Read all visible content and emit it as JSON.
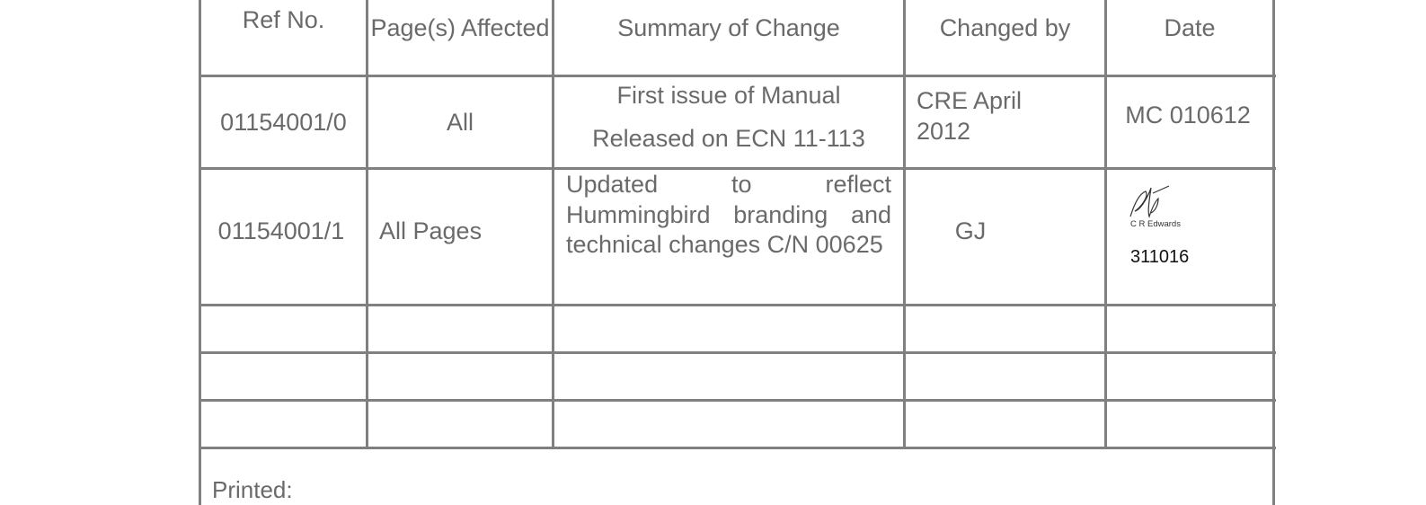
{
  "table": {
    "headers": [
      "Ref No.",
      "Page(s) Affected",
      "Summary of Change",
      "Changed by",
      "Date"
    ],
    "rows": [
      {
        "ref": "01154001/0",
        "pages": "All",
        "summary_line1": "First issue of Manual",
        "summary_line2": "Released on ECN 11-113",
        "changed_by": "CRE April 2012",
        "date": "MC 010612"
      },
      {
        "ref": "01154001/1",
        "pages": "All Pages",
        "summary": "Updated to reflect Hummingbird branding and technical changes C/N 00625",
        "changed_by": "GJ",
        "signature_name": "C R Edwards",
        "date": "311016"
      }
    ],
    "footer_label": "Printed:"
  }
}
